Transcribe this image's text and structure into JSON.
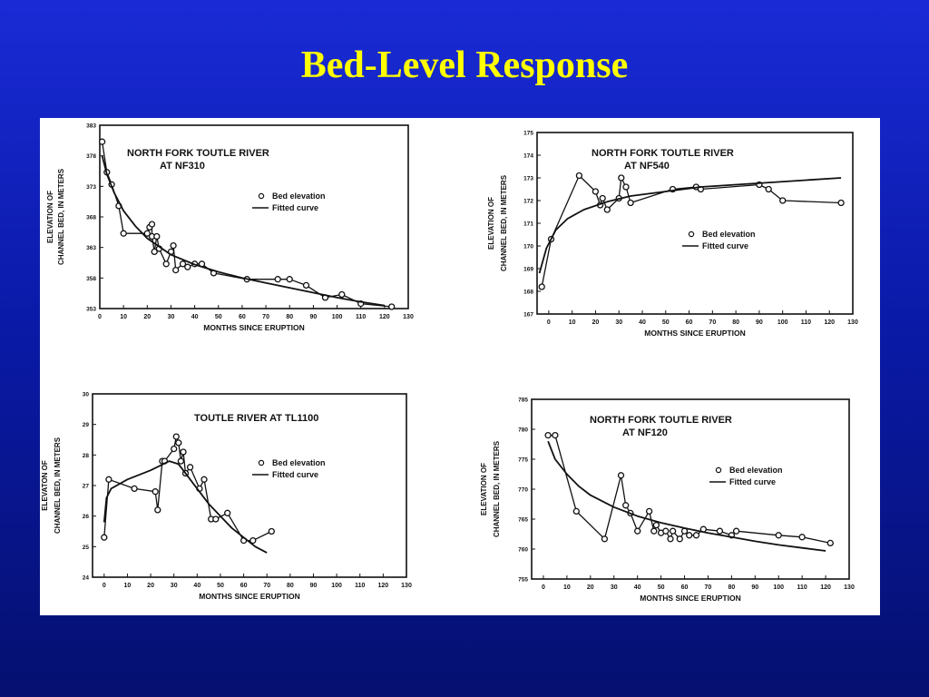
{
  "slide": {
    "title": "Bed-Level Response"
  },
  "colors": {
    "background": "#0a1aa8",
    "title": "#ffff00",
    "panel": "#ffffff",
    "ink": "#111111"
  },
  "chart_data": [
    {
      "type": "line",
      "title": "NORTH FORK TOUTLE RIVER",
      "subtitle": "AT NF310",
      "xlabel": "MONTHS SINCE ERUPTION",
      "ylabel": "ELEVATION OF CHANNEL BED, IN METERS",
      "xlim": [
        0,
        130
      ],
      "ylim": [
        353,
        383
      ],
      "xticks": [
        "0",
        "10",
        "20",
        "30",
        "40",
        "50",
        "60",
        "70",
        "80",
        "90",
        "100",
        "110",
        "120",
        "130"
      ],
      "yticks": [
        "353",
        "358",
        "363",
        "368",
        "373",
        "378",
        "383"
      ],
      "legend": [
        "Bed elevation",
        "Fitted curve"
      ],
      "series": [
        {
          "name": "Bed elevation",
          "marker": "circle",
          "points": [
            [
              1,
              380.3
            ],
            [
              3,
              375.3
            ],
            [
              5,
              373.3
            ],
            [
              8,
              369.8
            ],
            [
              10,
              365.3
            ],
            [
              20,
              365.3
            ],
            [
              21,
              366.3
            ],
            [
              22,
              366.8
            ],
            [
              22,
              364.8
            ],
            [
              23,
              362.3
            ],
            [
              24,
              364.8
            ],
            [
              25,
              362.8
            ],
            [
              28,
              360.3
            ],
            [
              30,
              362.3
            ],
            [
              31,
              363.3
            ],
            [
              32,
              359.3
            ],
            [
              35,
              360.3
            ],
            [
              37,
              359.8
            ],
            [
              40,
              360.3
            ],
            [
              43,
              360.3
            ],
            [
              48,
              358.8
            ],
            [
              62,
              357.8
            ],
            [
              75,
              357.8
            ],
            [
              80,
              357.8
            ],
            [
              87,
              356.8
            ],
            [
              95,
              354.8
            ],
            [
              102,
              355.3
            ],
            [
              110,
              353.8
            ],
            [
              123,
              353.3
            ]
          ]
        },
        {
          "name": "Fitted curve",
          "marker": "none",
          "points": [
            [
              1,
              378
            ],
            [
              3,
              375
            ],
            [
              6,
              372
            ],
            [
              10,
              369
            ],
            [
              15,
              366.5
            ],
            [
              20,
              364.5
            ],
            [
              30,
              361.8
            ],
            [
              40,
              360.2
            ],
            [
              50,
              359
            ],
            [
              60,
              358
            ],
            [
              70,
              357.2
            ],
            [
              80,
              356.4
            ],
            [
              90,
              355.6
            ],
            [
              100,
              354.8
            ],
            [
              110,
              354.1
            ],
            [
              120,
              353.5
            ]
          ]
        }
      ]
    },
    {
      "type": "line",
      "title": "NORTH FORK TOUTLE RIVER",
      "subtitle": "AT NF540",
      "xlabel": "MONTHS SINCE ERUPTION",
      "ylabel": "ELEVATION OF CHANNEL BED, IN METERS",
      "xlim": [
        -5,
        130
      ],
      "ylim": [
        167,
        175
      ],
      "xticks": [
        "0",
        "10",
        "20",
        "30",
        "40",
        "50",
        "60",
        "70",
        "80",
        "90",
        "100",
        "110",
        "120",
        "130"
      ],
      "yticks": [
        "167",
        "168",
        "169",
        "170",
        "171",
        "172",
        "173",
        "174",
        "175"
      ],
      "legend": [
        "Bed elevation",
        "Fitted curve"
      ],
      "series": [
        {
          "name": "Bed elevation",
          "marker": "circle",
          "points": [
            [
              -3,
              168.2
            ],
            [
              1,
              170.3
            ],
            [
              13,
              173.1
            ],
            [
              20,
              172.4
            ],
            [
              22,
              171.8
            ],
            [
              23,
              172.1
            ],
            [
              25,
              171.6
            ],
            [
              30,
              172.1
            ],
            [
              31,
              173
            ],
            [
              33,
              172.6
            ],
            [
              35,
              171.9
            ],
            [
              53,
              172.5
            ],
            [
              63,
              172.6
            ],
            [
              65,
              172.5
            ],
            [
              90,
              172.7
            ],
            [
              94,
              172.5
            ],
            [
              100,
              172
            ],
            [
              125,
              171.9
            ]
          ]
        },
        {
          "name": "Fitted curve",
          "marker": "none",
          "points": [
            [
              -4,
              168.8
            ],
            [
              -1,
              169.9
            ],
            [
              3,
              170.7
            ],
            [
              8,
              171.2
            ],
            [
              15,
              171.6
            ],
            [
              25,
              171.95
            ],
            [
              35,
              172.2
            ],
            [
              50,
              172.4
            ],
            [
              65,
              172.6
            ],
            [
              80,
              172.7
            ],
            [
              95,
              172.8
            ],
            [
              110,
              172.9
            ],
            [
              125,
              173
            ]
          ]
        }
      ]
    },
    {
      "type": "line",
      "title": "TOUTLE RIVER AT TL1100",
      "subtitle": "",
      "xlabel": "MONTHS SINCE ERUPTION",
      "ylabel": "ELEVATON OF CHANNEL BED, IN METERS",
      "xlim": [
        -5,
        130
      ],
      "ylim": [
        24,
        30
      ],
      "xticks": [
        "0",
        "10",
        "20",
        "30",
        "40",
        "50",
        "60",
        "70",
        "80",
        "90",
        "100",
        "110",
        "120",
        "130"
      ],
      "yticks": [
        "24",
        "25",
        "26",
        "27",
        "28",
        "29",
        "30"
      ],
      "legend": [
        "Bed elevation",
        "Fitted curve"
      ],
      "series": [
        {
          "name": "Bed elevation",
          "marker": "circle",
          "points": [
            [
              0,
              25.3
            ],
            [
              2,
              27.2
            ],
            [
              13,
              26.9
            ],
            [
              22,
              26.8
            ],
            [
              23,
              26.2
            ],
            [
              25,
              27.8
            ],
            [
              26,
              27.8
            ],
            [
              30,
              28.2
            ],
            [
              31,
              28.6
            ],
            [
              32,
              28.4
            ],
            [
              33,
              27.8
            ],
            [
              34,
              28.1
            ],
            [
              35,
              27.4
            ],
            [
              37,
              27.6
            ],
            [
              41,
              26.9
            ],
            [
              43,
              27.2
            ],
            [
              46,
              25.9
            ],
            [
              48,
              25.9
            ],
            [
              53,
              26.1
            ],
            [
              60,
              25.2
            ],
            [
              64,
              25.2
            ],
            [
              72,
              25.5
            ]
          ]
        },
        {
          "name": "Fitted curve",
          "marker": "none",
          "points": [
            [
              0,
              25.8
            ],
            [
              1,
              26.6
            ],
            [
              3,
              26.9
            ],
            [
              10,
              27.2
            ],
            [
              20,
              27.5
            ],
            [
              28,
              27.8
            ],
            [
              32,
              27.7
            ],
            [
              36,
              27.3
            ],
            [
              40,
              26.9
            ],
            [
              45,
              26.4
            ],
            [
              50,
              26
            ],
            [
              55,
              25.6
            ],
            [
              60,
              25.3
            ],
            [
              65,
              25
            ],
            [
              70,
              24.8
            ]
          ]
        }
      ]
    },
    {
      "type": "line",
      "title": "NORTH FORK TOUTLE RIVER",
      "subtitle": "AT NF120",
      "xlabel": "MONTHS SINCE ERUPTION",
      "ylabel": "ELEVATION OF CHANNEL BED, IN METERS",
      "xlim": [
        -5,
        130
      ],
      "ylim": [
        755,
        785
      ],
      "xticks": [
        "0",
        "10",
        "20",
        "30",
        "40",
        "50",
        "60",
        "70",
        "80",
        "90",
        "100",
        "110",
        "120",
        "130"
      ],
      "yticks": [
        "755",
        "760",
        "765",
        "770",
        "775",
        "780",
        "785"
      ],
      "legend": [
        "Bed elevation",
        "Fitted curve"
      ],
      "series": [
        {
          "name": "Bed elevation",
          "marker": "circle",
          "points": [
            [
              2,
              779
            ],
            [
              5,
              779
            ],
            [
              14,
              766.3
            ],
            [
              26,
              761.7
            ],
            [
              33,
              772.3
            ],
            [
              35,
              767.3
            ],
            [
              37,
              766
            ],
            [
              40,
              763
            ],
            [
              45,
              766.3
            ],
            [
              47,
              763
            ],
            [
              48,
              764
            ],
            [
              50,
              762.7
            ],
            [
              52,
              763
            ],
            [
              54,
              761.7
            ],
            [
              55,
              763
            ],
            [
              58,
              761.7
            ],
            [
              60,
              763
            ],
            [
              62,
              762.3
            ],
            [
              65,
              762.3
            ],
            [
              68,
              763.3
            ],
            [
              75,
              763
            ],
            [
              80,
              762.3
            ],
            [
              82,
              763
            ],
            [
              100,
              762.3
            ],
            [
              110,
              762
            ],
            [
              122,
              761
            ]
          ]
        },
        {
          "name": "Fitted curve",
          "marker": "none",
          "points": [
            [
              2,
              778
            ],
            [
              5,
              775
            ],
            [
              10,
              772.5
            ],
            [
              15,
              770.5
            ],
            [
              20,
              769
            ],
            [
              30,
              767
            ],
            [
              40,
              765.5
            ],
            [
              50,
              764.4
            ],
            [
              60,
              763.5
            ],
            [
              70,
              762.7
            ],
            [
              80,
              762
            ],
            [
              90,
              761.3
            ],
            [
              100,
              760.7
            ],
            [
              110,
              760.2
            ],
            [
              120,
              759.7
            ]
          ]
        }
      ]
    }
  ]
}
